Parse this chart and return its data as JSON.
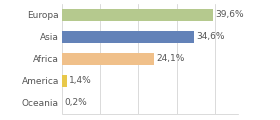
{
  "categories": [
    "Europa",
    "Asia",
    "Africa",
    "America",
    "Oceania"
  ],
  "values": [
    39.6,
    34.6,
    24.1,
    1.4,
    0.2
  ],
  "labels": [
    "39,6%",
    "34,6%",
    "24,1%",
    "1,4%",
    "0,2%"
  ],
  "bar_colors": [
    "#b5c98e",
    "#6382b8",
    "#f0c08a",
    "#e8c84a",
    "#e07070"
  ],
  "xlim": [
    0,
    46
  ],
  "background_color": "#ffffff",
  "label_fontsize": 6.5,
  "tick_fontsize": 6.5,
  "bar_height": 0.55
}
